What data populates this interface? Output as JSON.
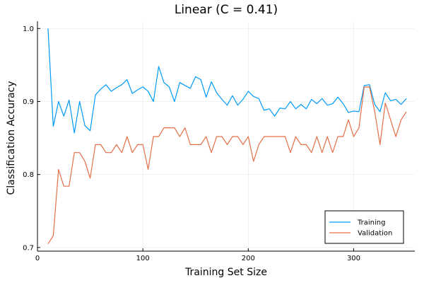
{
  "chart_data": {
    "type": "line",
    "title": "Linear (C = 0.41)",
    "xlabel": "Training Set Size",
    "ylabel": "Classification Accuracy",
    "xlim": [
      0,
      358
    ],
    "ylim": [
      0.695,
      1.01
    ],
    "xticks": [
      0,
      100,
      200,
      300
    ],
    "yticks": [
      0.7,
      0.8,
      0.9,
      1.0
    ],
    "xtick_labels": [
      "0",
      "100",
      "200",
      "300"
    ],
    "ytick_labels": [
      "0.7",
      "0.8",
      "0.9",
      "1.0"
    ],
    "grid": true,
    "legend_position": "bottom-right",
    "x": [
      10,
      15,
      20,
      25,
      30,
      35,
      40,
      45,
      50,
      55,
      60,
      65,
      70,
      75,
      80,
      85,
      90,
      95,
      100,
      105,
      110,
      115,
      120,
      125,
      130,
      135,
      140,
      145,
      150,
      155,
      160,
      165,
      170,
      175,
      180,
      185,
      190,
      195,
      200,
      205,
      210,
      215,
      220,
      225,
      230,
      235,
      240,
      245,
      250,
      255,
      260,
      265,
      270,
      275,
      280,
      285,
      290,
      295,
      300,
      305,
      310,
      315,
      320,
      325,
      330,
      335,
      340,
      345,
      350
    ],
    "series": [
      {
        "name": "Training",
        "color": "#009AFA",
        "values": [
          1.0,
          0.866,
          0.9,
          0.88,
          0.902,
          0.857,
          0.9,
          0.867,
          0.86,
          0.909,
          0.917,
          0.923,
          0.914,
          0.919,
          0.923,
          0.93,
          0.911,
          0.916,
          0.92,
          0.914,
          0.9,
          0.948,
          0.926,
          0.92,
          0.9,
          0.926,
          0.922,
          0.918,
          0.934,
          0.93,
          0.906,
          0.927,
          0.912,
          0.903,
          0.895,
          0.908,
          0.895,
          0.903,
          0.914,
          0.907,
          0.904,
          0.888,
          0.89,
          0.88,
          0.891,
          0.89,
          0.9,
          0.89,
          0.896,
          0.89,
          0.903,
          0.897,
          0.904,
          0.895,
          0.897,
          0.906,
          0.897,
          0.885,
          0.887,
          0.886,
          0.922,
          0.923,
          0.896,
          0.886,
          0.912,
          0.901,
          0.903,
          0.896,
          0.904
        ]
      },
      {
        "name": "Validation",
        "color": "#E36F47",
        "values": [
          0.705,
          0.716,
          0.807,
          0.784,
          0.784,
          0.83,
          0.83,
          0.818,
          0.795,
          0.841,
          0.841,
          0.83,
          0.83,
          0.841,
          0.83,
          0.852,
          0.83,
          0.841,
          0.841,
          0.807,
          0.852,
          0.852,
          0.864,
          0.864,
          0.864,
          0.852,
          0.864,
          0.841,
          0.841,
          0.841,
          0.852,
          0.83,
          0.852,
          0.852,
          0.841,
          0.852,
          0.852,
          0.841,
          0.852,
          0.818,
          0.841,
          0.852,
          0.852,
          0.852,
          0.852,
          0.852,
          0.83,
          0.852,
          0.841,
          0.841,
          0.83,
          0.852,
          0.83,
          0.852,
          0.83,
          0.852,
          0.852,
          0.875,
          0.852,
          0.864,
          0.92,
          0.92,
          0.886,
          0.841,
          0.898,
          0.875,
          0.852,
          0.875,
          0.886
        ]
      }
    ]
  }
}
